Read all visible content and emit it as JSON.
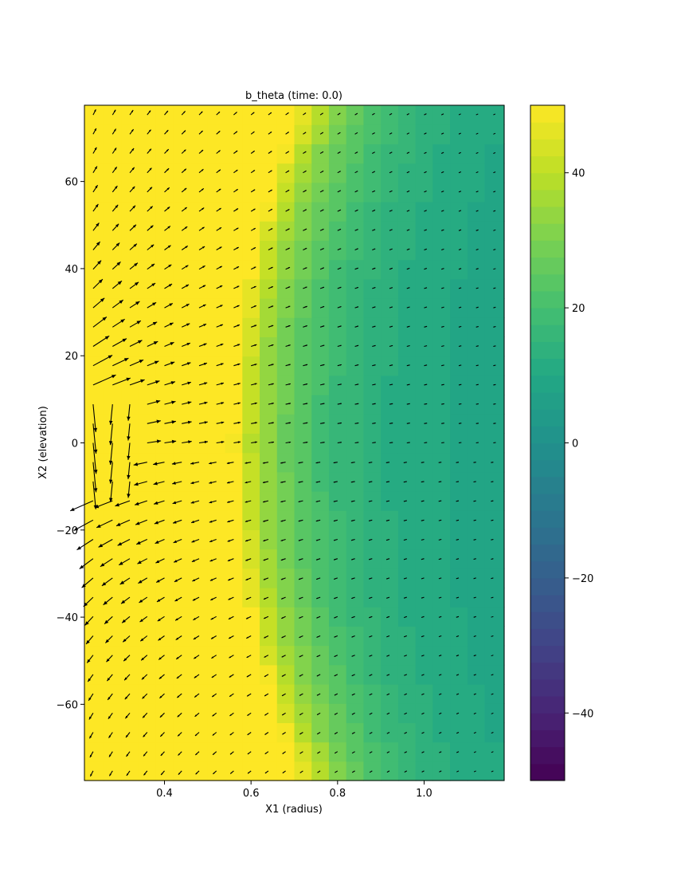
{
  "chart_data": {
    "type": "heatmap",
    "title": "b_theta (time: 0.0)",
    "xlabel": "X1 (radius)",
    "ylabel": "X2 (elevation)",
    "xlim": [
      0.215,
      1.185
    ],
    "ylim": [
      -77.5,
      77.5
    ],
    "x_ticks": [
      "0.4",
      "0.6",
      "0.8",
      "1.0"
    ],
    "x_tick_values": [
      0.4,
      0.6,
      0.8,
      1.0
    ],
    "y_ticks": [
      "60",
      "40",
      "20",
      "0",
      "−20",
      "−40",
      "−60"
    ],
    "y_tick_values": [
      60,
      40,
      20,
      0,
      -20,
      -40,
      -60
    ],
    "colorbar": {
      "colormap": "viridis",
      "range": [
        -50,
        50
      ],
      "ticks": [
        "40",
        "20",
        "0",
        "−20",
        "−40"
      ],
      "tick_values": [
        40,
        20,
        0,
        -20,
        -40
      ]
    },
    "grid": {
      "x_edges": [
        0.215,
        0.26,
        0.3,
        0.34,
        0.38,
        0.42,
        0.46,
        0.5,
        0.54,
        0.58,
        0.62,
        0.66,
        0.7,
        0.74,
        0.78,
        0.82,
        0.86,
        0.9,
        0.94,
        0.98,
        1.02,
        1.06,
        1.1,
        1.14,
        1.185
      ],
      "rows": 35,
      "y_min": -77.5,
      "y_max": 77.5
    },
    "field_description": "b_theta saturates (>=50) near the axis and decays with radius; vector arrows show the poloidal field (outward-upward above the midplane, inward-downward below)",
    "arrow_columns": 24,
    "arrow_rows": 35
  },
  "colors": {
    "viridis_stops": [
      "#440154",
      "#482475",
      "#414487",
      "#355f8d",
      "#2a788e",
      "#21918c",
      "#22a884",
      "#44bf70",
      "#7ad151",
      "#bddf26",
      "#fde725"
    ],
    "arrow": "#000000",
    "axis": "#000000"
  }
}
